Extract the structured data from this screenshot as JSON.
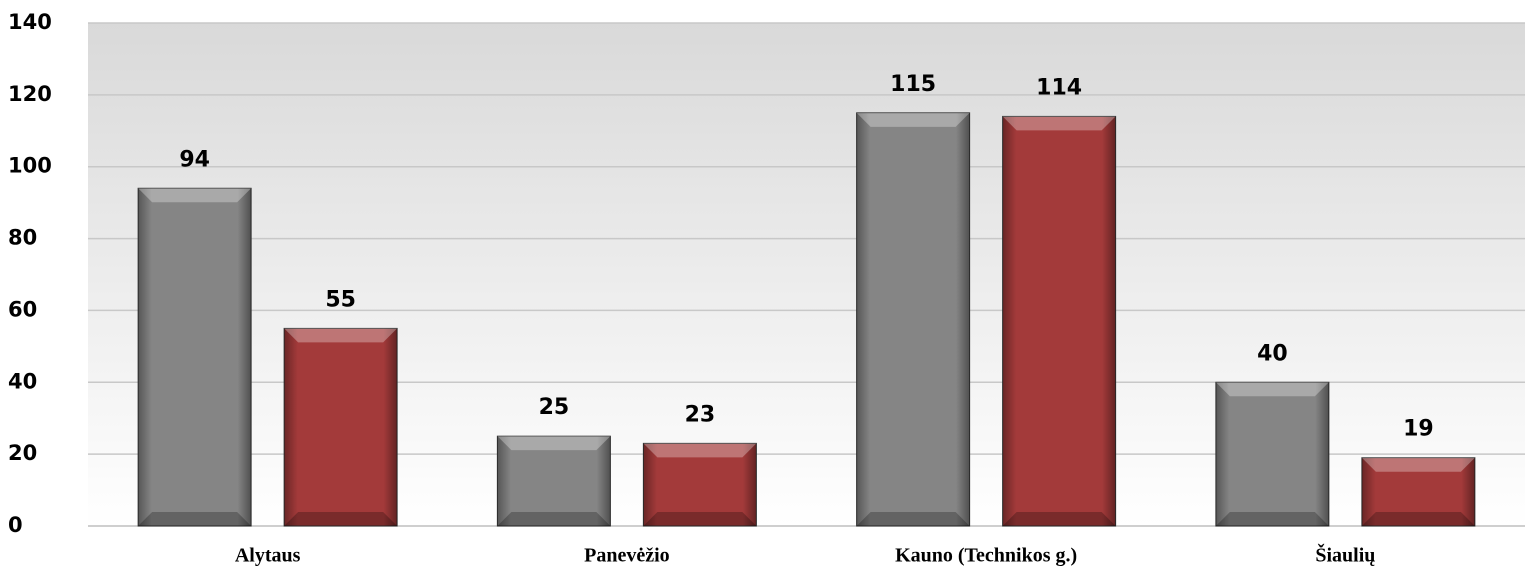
{
  "chart_data": {
    "type": "bar",
    "categories": [
      "Alytaus",
      "Panevėžio",
      "Kauno (Technikos g.)",
      "Šiaulių"
    ],
    "series": [
      {
        "color": "#858585",
        "values": [
          94,
          25,
          115,
          40
        ]
      },
      {
        "color": "#a33a3a",
        "values": [
          55,
          23,
          114,
          19
        ]
      }
    ],
    "ylim": [
      0,
      140
    ],
    "yticks": [
      0,
      20,
      40,
      60,
      80,
      100,
      120,
      140
    ],
    "grid": true
  }
}
